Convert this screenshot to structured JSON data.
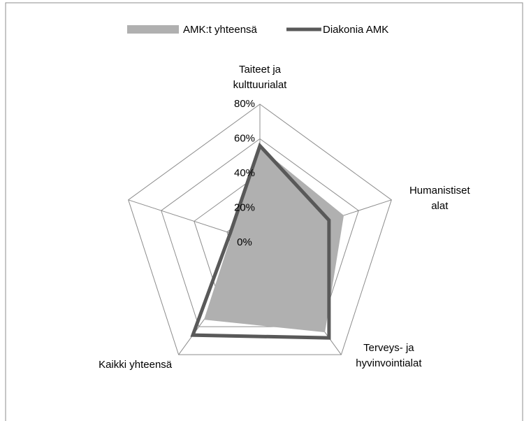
{
  "chart_data": {
    "type": "radar",
    "categories": [
      "Taiteet ja\nkulttuurialat",
      "Humanistiset\nalat",
      "Terveys- ja\nhyvinvointialat",
      "Kaikki yhteensä",
      null
    ],
    "series": [
      {
        "name": "AMK:t yhteensä",
        "color": "#b0b0b0",
        "values": [
          55,
          51,
          64,
          55,
          17
        ]
      },
      {
        "name": "Diakonia AMK",
        "color": "#595959",
        "values": [
          56,
          42,
          68,
          66,
          18
        ]
      }
    ],
    "ylim": [
      0,
      80
    ],
    "yticks": [
      {
        "value": 0,
        "label": "0%"
      },
      {
        "value": 20,
        "label": "20%"
      },
      {
        "value": 40,
        "label": "40%"
      },
      {
        "value": 60,
        "label": "60%"
      },
      {
        "value": 80,
        "label": "80%"
      }
    ],
    "legend": "top"
  }
}
